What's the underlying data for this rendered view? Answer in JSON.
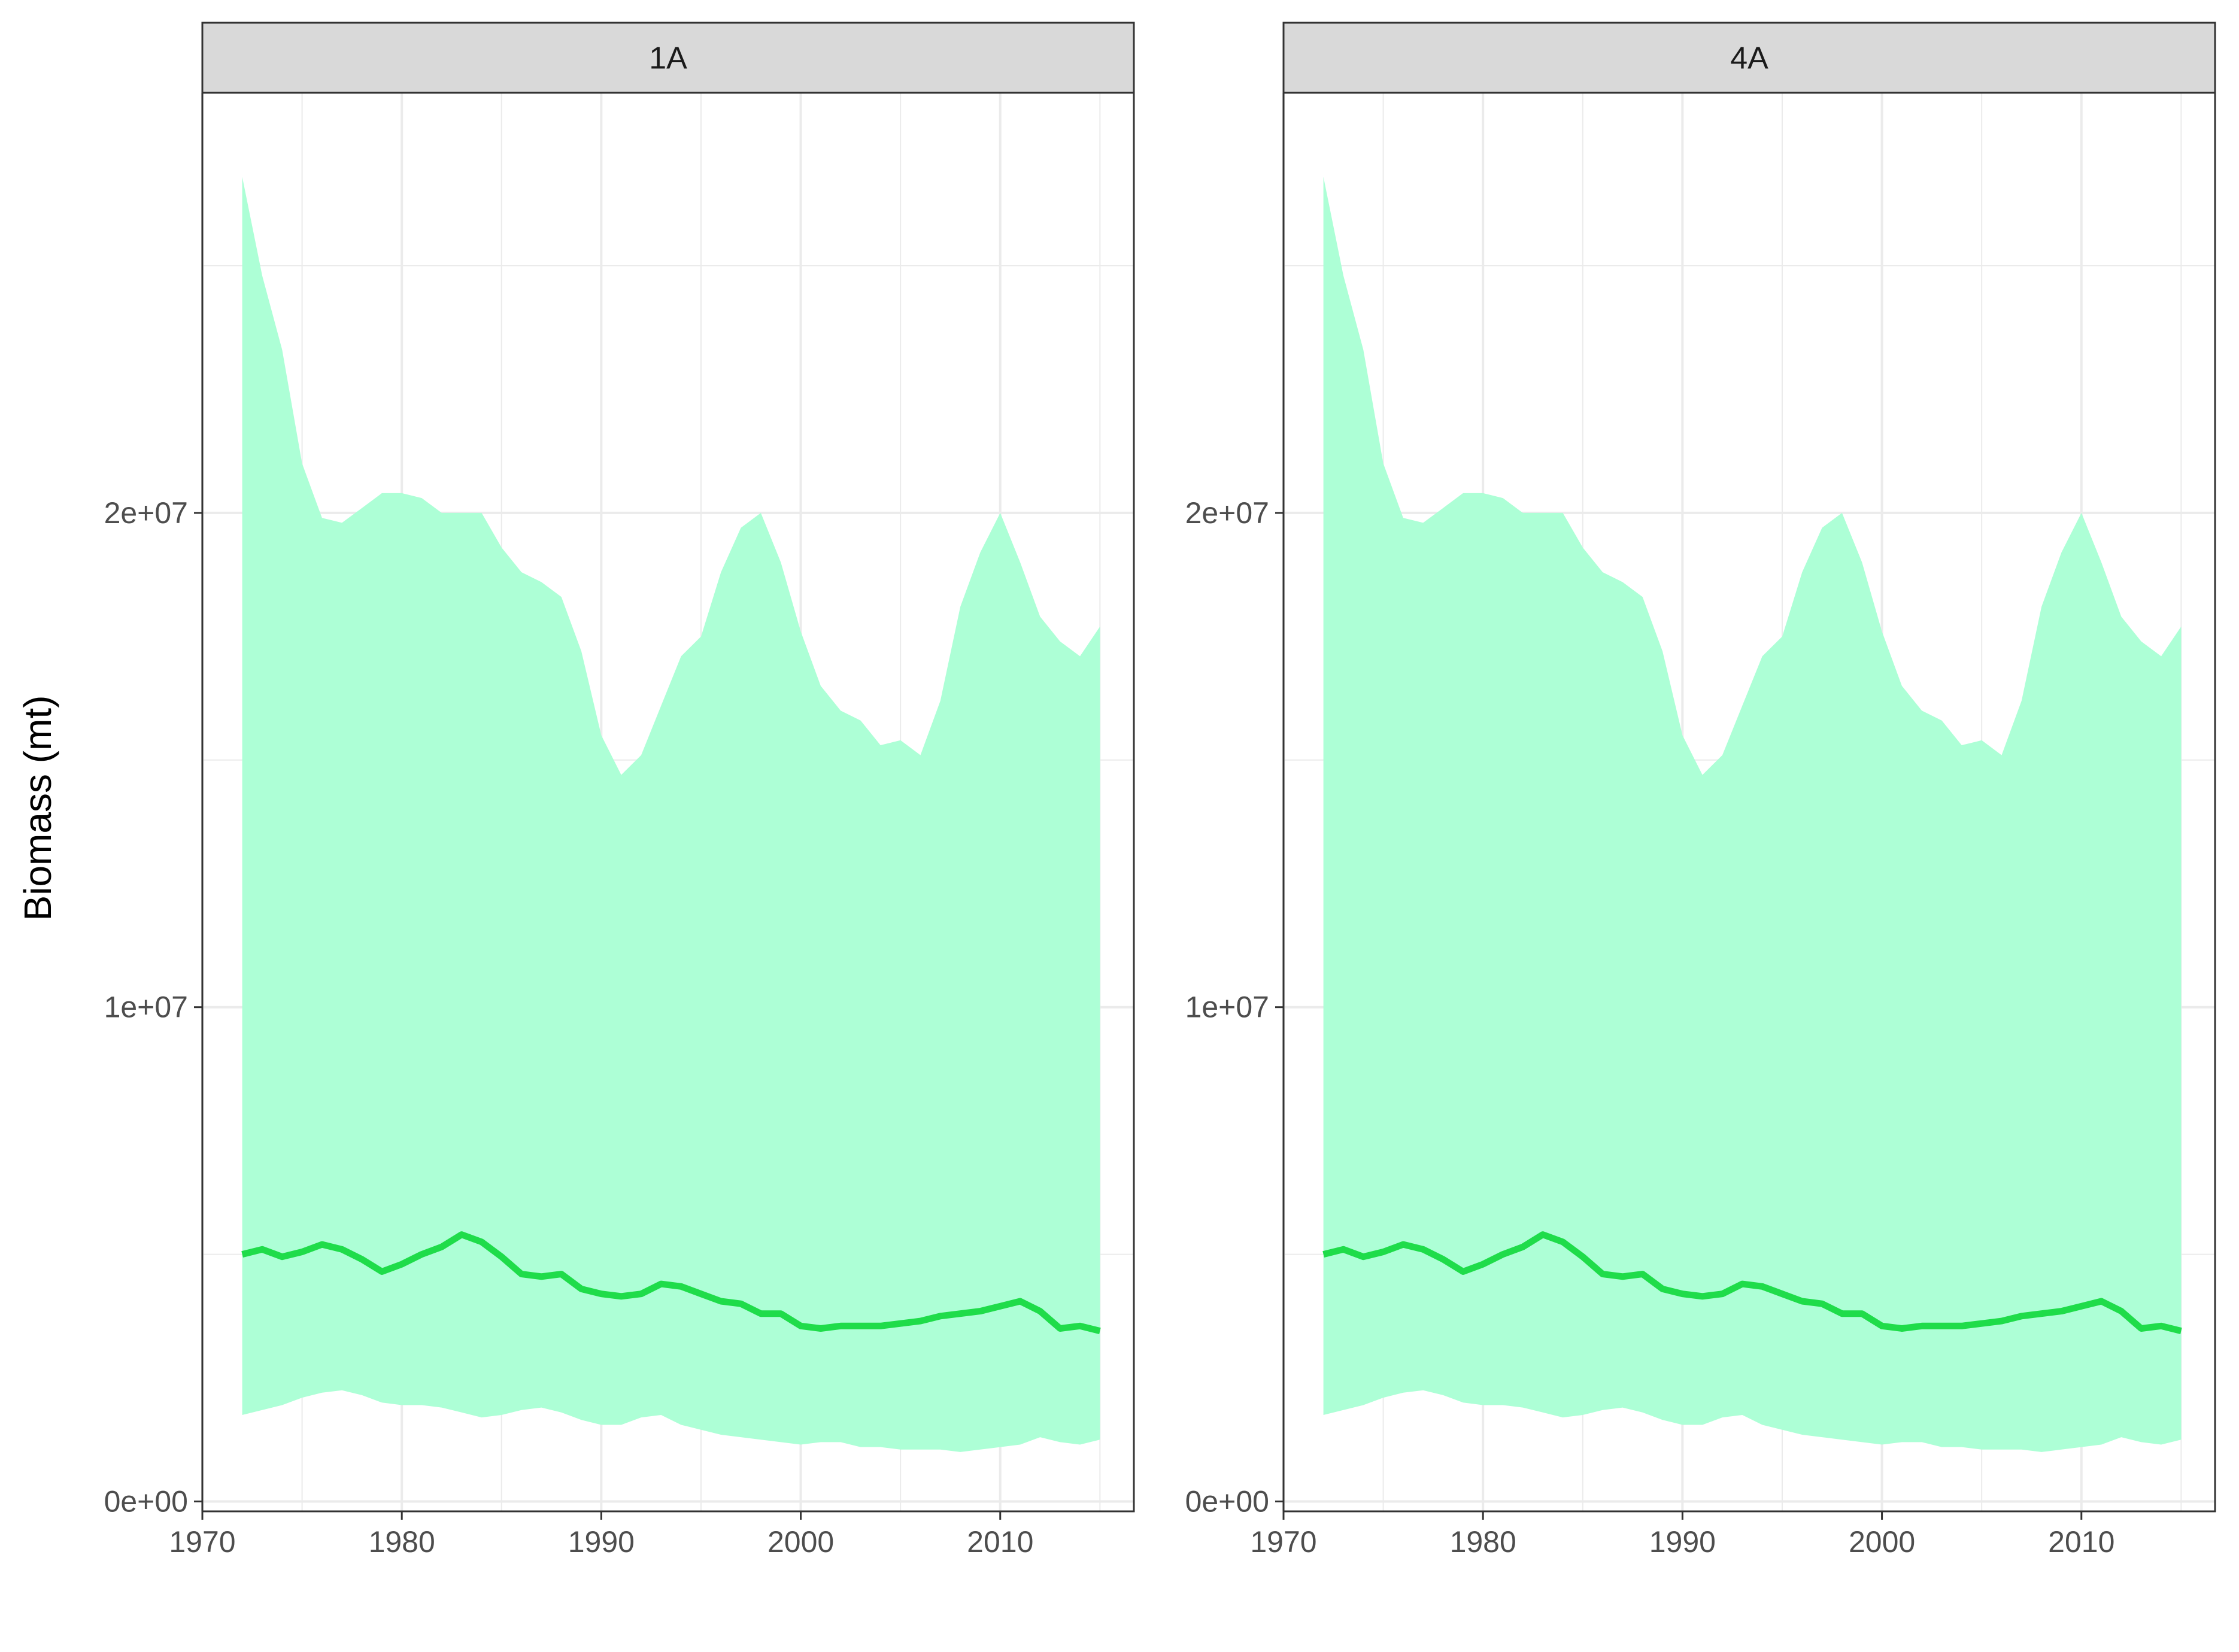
{
  "chart_data": {
    "type": "area",
    "ylabel": "Biomass (mt)",
    "xlabel": "",
    "xlim": [
      1970,
      2016.7
    ],
    "ylim": [
      -200000,
      28500000
    ],
    "x_ticks": [
      1970,
      1980,
      1990,
      2000,
      2010
    ],
    "x_tick_labels": [
      "1970",
      "1980",
      "1990",
      "2000",
      "2010"
    ],
    "y_ticks": [
      0,
      10000000,
      20000000
    ],
    "y_tick_labels": [
      "0e+00",
      "1e+07",
      "2e+07"
    ],
    "grid": true,
    "colors": {
      "band": "#adffd6",
      "line": "#1fdc4a",
      "strip": "#d9d9d9",
      "grid": "#ebebeb"
    },
    "years": [
      1972,
      1973,
      1974,
      1975,
      1976,
      1977,
      1978,
      1979,
      1980,
      1981,
      1982,
      1983,
      1984,
      1985,
      1986,
      1987,
      1988,
      1989,
      1990,
      1991,
      1992,
      1993,
      1994,
      1995,
      1996,
      1997,
      1998,
      1999,
      2000,
      2001,
      2002,
      2003,
      2004,
      2005,
      2006,
      2007,
      2008,
      2009,
      2010,
      2011,
      2012,
      2013,
      2014,
      2015
    ],
    "panels": [
      {
        "label": "1A",
        "median": [
          5000000,
          5100000,
          4950000,
          5050000,
          5200000,
          5100000,
          4900000,
          4650000,
          4800000,
          5000000,
          5150000,
          5400000,
          5250000,
          4950000,
          4600000,
          4550000,
          4600000,
          4300000,
          4200000,
          4150000,
          4200000,
          4400000,
          4350000,
          4200000,
          4050000,
          4000000,
          3800000,
          3800000,
          3550000,
          3500000,
          3550000,
          3550000,
          3550000,
          3600000,
          3650000,
          3750000,
          3800000,
          3850000,
          3950000,
          4050000,
          3850000,
          3500000,
          3550000,
          3450000
        ],
        "lower": [
          1750000,
          1850000,
          1950000,
          2100000,
          2200000,
          2250000,
          2150000,
          2000000,
          1950000,
          1950000,
          1900000,
          1800000,
          1700000,
          1750000,
          1850000,
          1900000,
          1800000,
          1650000,
          1550000,
          1550000,
          1700000,
          1750000,
          1550000,
          1450000,
          1350000,
          1300000,
          1250000,
          1200000,
          1150000,
          1200000,
          1200000,
          1100000,
          1100000,
          1050000,
          1050000,
          1050000,
          1000000,
          1050000,
          1100000,
          1150000,
          1300000,
          1200000,
          1150000,
          1250000
        ],
        "upper": [
          26800000,
          24800000,
          23300000,
          21000000,
          19900000,
          19800000,
          20100000,
          20400000,
          20400000,
          20300000,
          20000000,
          20000000,
          20000000,
          19300000,
          18800000,
          18600000,
          18300000,
          17200000,
          15500000,
          14700000,
          15100000,
          16100000,
          17100000,
          17500000,
          18800000,
          19700000,
          20000000,
          19000000,
          17600000,
          16500000,
          16000000,
          15800000,
          15300000,
          15400000,
          15100000,
          16200000,
          18100000,
          19200000,
          20000000,
          19000000,
          17900000,
          17400000,
          17100000,
          17700000
        ]
      },
      {
        "label": "4A",
        "median": [
          5000000,
          5100000,
          4950000,
          5050000,
          5200000,
          5100000,
          4900000,
          4650000,
          4800000,
          5000000,
          5150000,
          5400000,
          5250000,
          4950000,
          4600000,
          4550000,
          4600000,
          4300000,
          4200000,
          4150000,
          4200000,
          4400000,
          4350000,
          4200000,
          4050000,
          4000000,
          3800000,
          3800000,
          3550000,
          3500000,
          3550000,
          3550000,
          3550000,
          3600000,
          3650000,
          3750000,
          3800000,
          3850000,
          3950000,
          4050000,
          3850000,
          3500000,
          3550000,
          3450000
        ],
        "lower": [
          1750000,
          1850000,
          1950000,
          2100000,
          2200000,
          2250000,
          2150000,
          2000000,
          1950000,
          1950000,
          1900000,
          1800000,
          1700000,
          1750000,
          1850000,
          1900000,
          1800000,
          1650000,
          1550000,
          1550000,
          1700000,
          1750000,
          1550000,
          1450000,
          1350000,
          1300000,
          1250000,
          1200000,
          1150000,
          1200000,
          1200000,
          1100000,
          1100000,
          1050000,
          1050000,
          1050000,
          1000000,
          1050000,
          1100000,
          1150000,
          1300000,
          1200000,
          1150000,
          1250000
        ],
        "upper": [
          26800000,
          24800000,
          23300000,
          21000000,
          19900000,
          19800000,
          20100000,
          20400000,
          20400000,
          20300000,
          20000000,
          20000000,
          20000000,
          19300000,
          18800000,
          18600000,
          18300000,
          17200000,
          15500000,
          14700000,
          15100000,
          16100000,
          17100000,
          17500000,
          18800000,
          19700000,
          20000000,
          19000000,
          17600000,
          16500000,
          16000000,
          15800000,
          15300000,
          15400000,
          15100000,
          16200000,
          18100000,
          19200000,
          20000000,
          19000000,
          17900000,
          17400000,
          17100000,
          17700000
        ]
      }
    ]
  }
}
